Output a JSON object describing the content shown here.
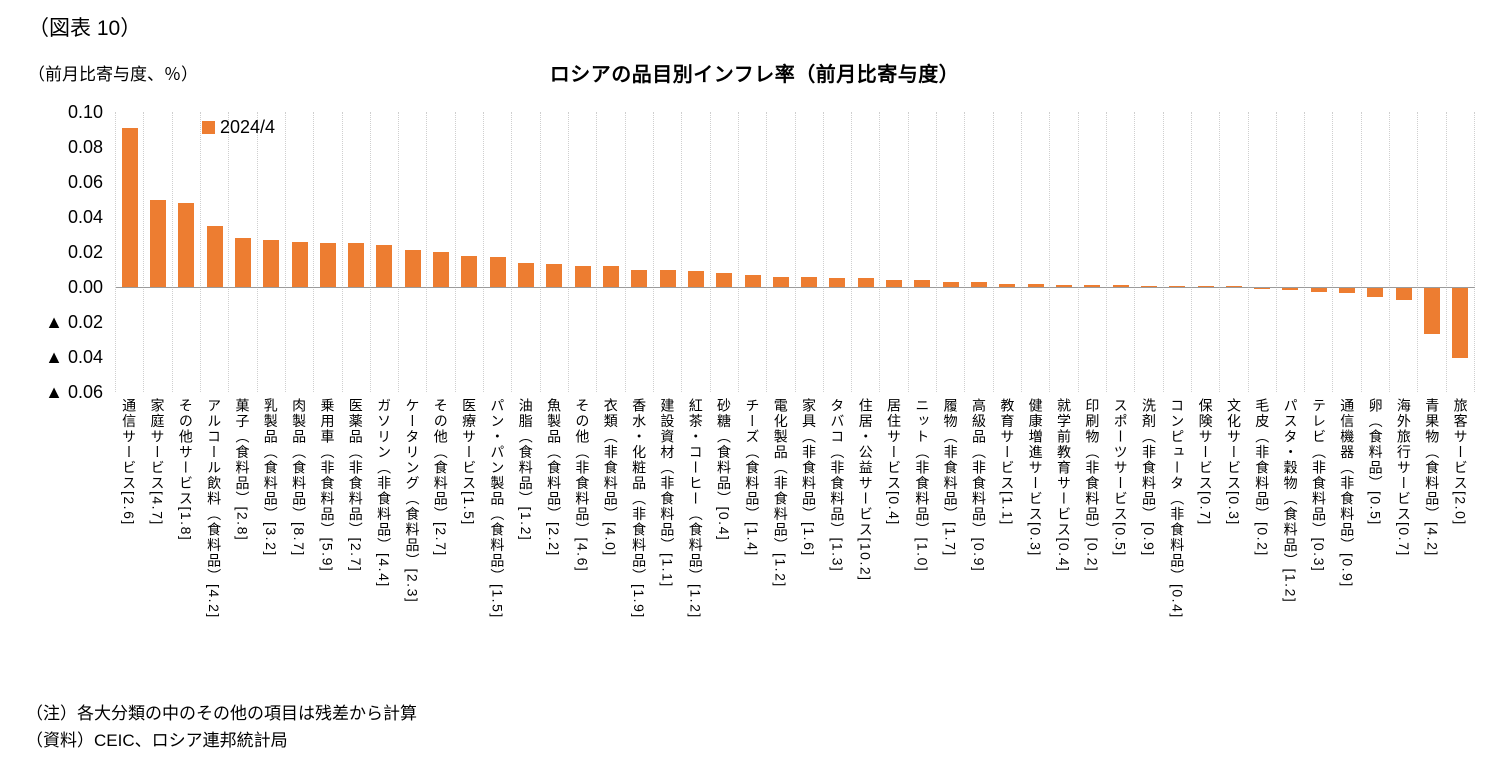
{
  "figure_label": "（図表 10）",
  "axis_unit_label": "（前月比寄与度、％）",
  "notes": [
    "（注）各大分類の中のその他の項目は残差から計算",
    "（資料）CEIC、ロシア連邦統計局"
  ],
  "chart_data": {
    "type": "bar",
    "title": "ロシアの品目別インフレ率（前月比寄与度）",
    "legend_label": "2024/4",
    "bar_color": "#ED7D31",
    "grid_color": "#cfcfcf",
    "ylim": [
      -0.06,
      0.1
    ],
    "legend_position": "top-left-inside",
    "y_ticks": [
      {
        "label": "0.10",
        "value": 0.1
      },
      {
        "label": "0.08",
        "value": 0.08
      },
      {
        "label": "0.06",
        "value": 0.06
      },
      {
        "label": "0.04",
        "value": 0.04
      },
      {
        "label": "0.02",
        "value": 0.02
      },
      {
        "label": "0.00",
        "value": 0.0
      },
      {
        "label": "▲ 0.02",
        "value": -0.02
      },
      {
        "label": "▲ 0.04",
        "value": -0.04
      },
      {
        "label": "▲ 0.06",
        "value": -0.06
      }
    ],
    "categories": [
      "通信サービス[2.6]",
      "家庭サービス[4.7]",
      "その他サービス[1.8]",
      "アルコール飲料（食料品）[4.2]",
      "菓子（食料品）[2.8]",
      "乳製品（食料品）[3.2]",
      "肉製品（食料品）[8.7]",
      "乗用車（非食料品）[5.9]",
      "医薬品（非食料品）[2.7]",
      "ガソリン（非食料品）[4.4]",
      "ケータリング（食料品）[2.3]",
      "その他（食料品）[2.7]",
      "医療サービス[1.5]",
      "パン・パン製品（食料品）[1.5]",
      "油脂（食料品）[1.2]",
      "魚製品（食料品）[2.2]",
      "その他（非食料品）[4.6]",
      "衣類（非食料品）[4.0]",
      "香水・化粧品（非食料品）[1.9]",
      "建設資材（非食料品）[1.1]",
      "紅茶・コーヒー（食料品）[1.2]",
      "砂糖（食料品）[0.4]",
      "チーズ（食料品）[1.4]",
      "電化製品（非食料品）[1.2]",
      "家具（非食料品）[1.6]",
      "タバコ（非食料品）[1.3]",
      "住居・公益サービス[10.2]",
      "居住サービス[0.4]",
      "ニット（非食料品）[1.0]",
      "履物（非食料品）[1.7]",
      "高級品（非食料品）[0.9]",
      "教育サービス[1.1]",
      "健康増進サービス[0.3]",
      "就学前教育サービス[0.4]",
      "印刷物（非食料品）[0.2]",
      "スポーツサービス[0.5]",
      "洗剤（非食料品）[0.9]",
      "コンピュータ（非食料品）[0.4]",
      "保険サービス[0.7]",
      "文化サービス[0.3]",
      "毛皮（非食料品）[0.2]",
      "パスタ・穀物（食料品）[1.2]",
      "テレビ（非食料品）[0.3]",
      "通信機器（非食料品）[0.9]",
      "卵（食料品）[0.5]",
      "海外旅行サービス[0.7]",
      "青果物（食料品）[4.2]",
      "旅客サービス[2.0]"
    ],
    "values": [
      0.091,
      0.05,
      0.048,
      0.035,
      0.028,
      0.027,
      0.026,
      0.025,
      0.025,
      0.024,
      0.021,
      0.02,
      0.018,
      0.017,
      0.014,
      0.013,
      0.012,
      0.012,
      0.01,
      0.01,
      0.009,
      0.008,
      0.007,
      0.006,
      0.006,
      0.005,
      0.005,
      0.004,
      0.004,
      0.003,
      0.003,
      0.002,
      0.002,
      0.001,
      0.001,
      0.001,
      0.0005,
      0.0004,
      0.0003,
      0.0002,
      -0.0003,
      -0.001,
      -0.002,
      -0.003,
      -0.005,
      -0.007,
      -0.026,
      -0.04
    ]
  }
}
